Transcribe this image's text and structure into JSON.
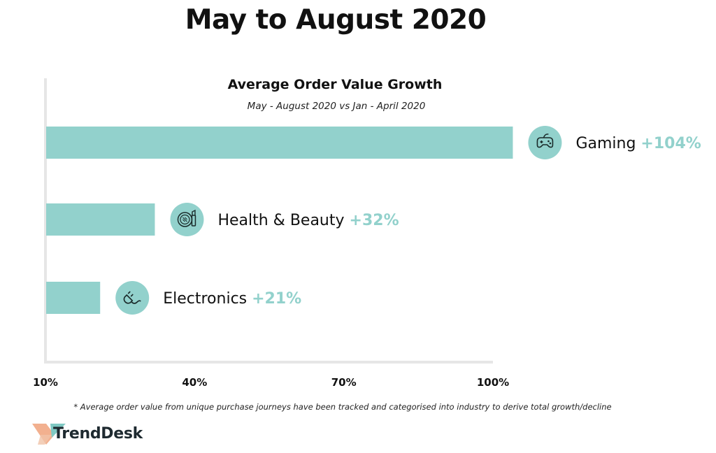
{
  "page_title": "May to August 2020",
  "chart_data": {
    "type": "bar",
    "orientation": "horizontal",
    "title": "Average Order Value Growth",
    "subtitle": "May - August 2020 vs Jan - April 2020",
    "categories": [
      "Gaming",
      "Health & Beauty",
      "Electronics"
    ],
    "values": [
      104,
      32,
      21
    ],
    "value_labels": [
      "+104%",
      "+32%",
      "+21%"
    ],
    "icons": [
      "gamepad-icon",
      "beauty-icon",
      "plug-icon"
    ],
    "xlim": [
      10,
      100
    ],
    "xticks": [
      10,
      40,
      70,
      100
    ],
    "xtick_labels": [
      "10%",
      "40%",
      "70%",
      "100%"
    ],
    "colors": {
      "bar": "#92d1cc",
      "icon_bg": "#92d1cc",
      "value_text": "#92d1cc",
      "axis": "#e6e6e6"
    }
  },
  "footnote": "* Average order value from unique purchase journeys have been tracked and categorised into industry to derive total growth/decline",
  "brand": {
    "name": "TrendDesk",
    "colors": [
      "#f2b08f",
      "#7fc9c3",
      "#1e2a30"
    ]
  }
}
